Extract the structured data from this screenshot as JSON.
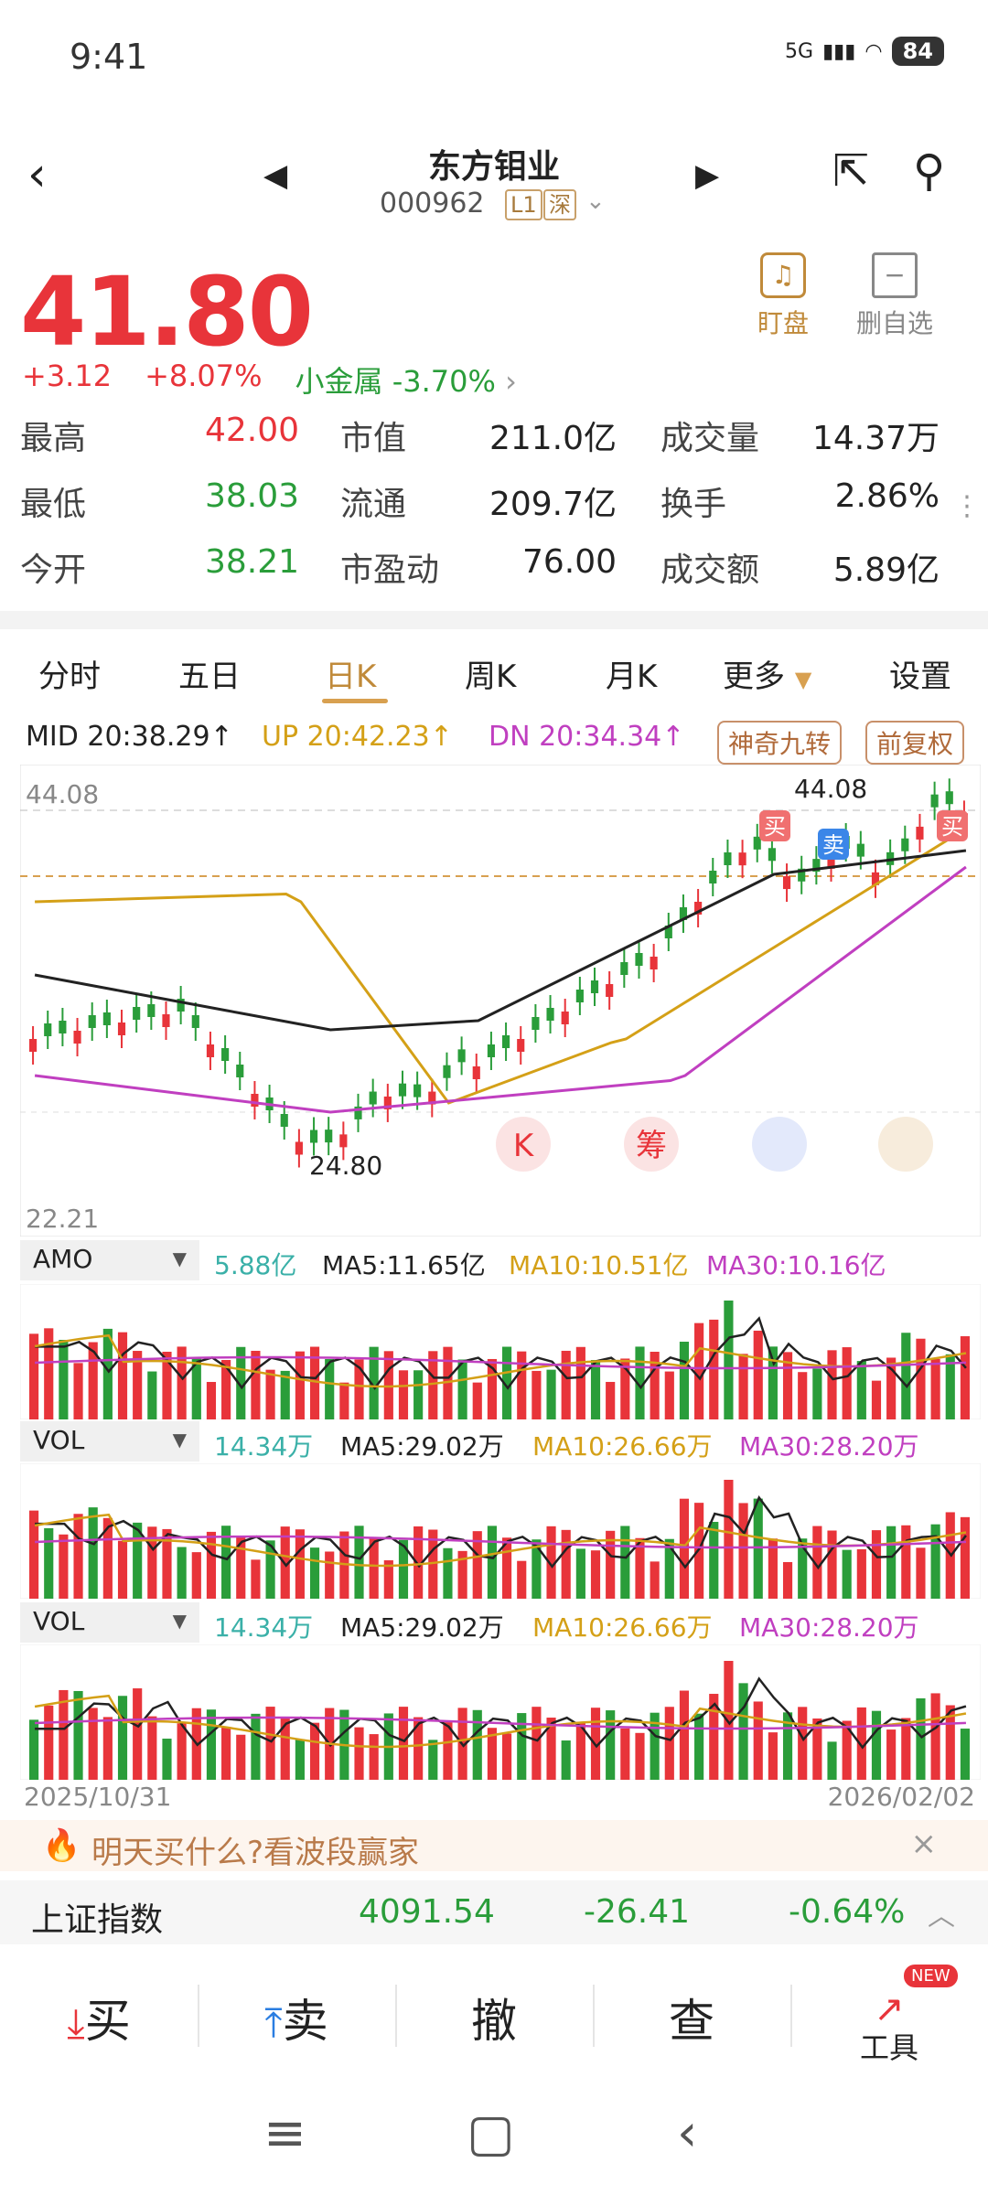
{
  "status_bar": {
    "time": "9:41",
    "network": "5G",
    "battery": "84"
  },
  "header": {
    "name": "东方钼业",
    "code": "000962",
    "tag_level": "L1",
    "tag_market": "深"
  },
  "quote": {
    "price": "41.80",
    "change": "+3.12",
    "change_pct": "+8.07%",
    "sector": "小金属 -3.70%",
    "rows": [
      {
        "l1": "最高",
        "v1": "42.00",
        "l2": "市值",
        "v2": "211.0亿",
        "l3": "成交量",
        "v3": "14.37万"
      },
      {
        "l1": "最低",
        "v1": "38.03",
        "l2": "流通",
        "v2": "209.7亿",
        "l3": "换手",
        "v3": "2.86%"
      },
      {
        "l1": "今开",
        "v1": "38.21",
        "l2": "市盈动",
        "v2": "76.00",
        "l3": "成交额",
        "v3": "5.89亿"
      }
    ]
  },
  "actions": {
    "watch": "盯盘",
    "remove": "删自选"
  },
  "tabs": [
    "分时",
    "五日",
    "日K",
    "周K",
    "月K",
    "更多",
    "设置"
  ],
  "indicators": {
    "mid": "MID 20:38.29↑",
    "up": "UP 20:42.23↑",
    "dn": "DN 20:34.34↑",
    "btn_magic": "神奇九转",
    "btn_adjust": "前复权"
  },
  "kchart": {
    "high_label": "44.08",
    "low_label": "22.21",
    "peak_label": "44.08",
    "trough_label": "24.80",
    "buy": "买",
    "sell": "卖",
    "k": "K",
    "chip": "筹"
  },
  "amo": {
    "name": "AMO",
    "value": "5.88亿",
    "ma5": "MA5:11.65亿",
    "ma10": "MA10:10.51亿",
    "ma30": "MA30:10.16亿"
  },
  "vol1": {
    "name": "VOL",
    "value": "14.34万",
    "ma5": "MA5:29.02万",
    "ma10": "MA10:26.66万",
    "ma30": "MA30:28.20万"
  },
  "vol2": {
    "name": "VOL",
    "value": "14.34万",
    "ma5": "MA5:29.02万",
    "ma10": "MA10:26.66万",
    "ma30": "MA30:28.20万"
  },
  "dates": {
    "start": "2025/10/31",
    "end": "2026/02/02"
  },
  "promo": "明天买什么?看波段赢家",
  "index": {
    "name": "上证指数",
    "value": "4091.54",
    "change": "-26.41",
    "pct": "-0.64%"
  },
  "trade": {
    "buy": "买",
    "sell": "卖",
    "cancel": "撤",
    "query": "查",
    "tools": "工具",
    "new_badge": "NEW"
  },
  "colors": {
    "up": "#e8343a",
    "down": "#2a9d3a",
    "accent": "#c08a3a",
    "mid": "#222222",
    "upline": "#d4a017",
    "dnline": "#c03fc0"
  }
}
